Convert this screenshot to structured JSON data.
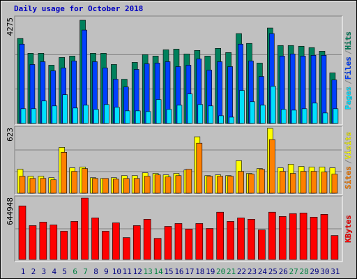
{
  "chart_data": [
    {
      "type": "bar",
      "title": "Daily usage for October 2018",
      "title_color": "#0000c0",
      "ylim": [
        0,
        4275
      ],
      "yticks": [
        4275
      ],
      "separator": "/",
      "series": [
        {
          "name": "Hits",
          "color": "#00805c",
          "values": [
            3519,
            2908,
            2908,
            2414,
            2733,
            2792,
            4275,
            2908,
            2908,
            2443,
            1832,
            2530,
            2850,
            2792,
            3053,
            3082,
            2879,
            3024,
            2792,
            3111,
            2937,
            3722,
            3315,
            2501,
            3955,
            3228,
            3228,
            3199,
            3141,
            2995,
            2094
          ]
        },
        {
          "name": "Files",
          "color": "#0040ff",
          "values": [
            3286,
            2443,
            2559,
            2181,
            2297,
            2588,
            3868,
            2559,
            2297,
            1832,
            1512,
            2239,
            2472,
            2501,
            2559,
            2356,
            2414,
            2675,
            2210,
            2559,
            2356,
            3286,
            2588,
            1948,
            3722,
            2792,
            2879,
            2792,
            2821,
            2821,
            1803
          ]
        },
        {
          "name": "Pages",
          "color": "#00e0ff",
          "values": [
            611,
            611,
            931,
            727,
            1192,
            640,
            756,
            582,
            785,
            669,
            523,
            523,
            494,
            989,
            582,
            756,
            1221,
            785,
            727,
            320,
            262,
            1367,
            901,
            756,
            1541,
            582,
            552,
            611,
            843,
            436,
            611
          ]
        }
      ]
    },
    {
      "type": "bar",
      "ylim": [
        0,
        623
      ],
      "yticks": [
        623
      ],
      "separator": "/",
      "series": [
        {
          "name": "Visits",
          "color": "#ffff00",
          "values": [
            230,
            163,
            163,
            149,
            440,
            244,
            251,
            149,
            142,
            149,
            169,
            169,
            196,
            190,
            176,
            190,
            223,
            542,
            169,
            176,
            169,
            312,
            190,
            237,
            623,
            244,
            278,
            257,
            251,
            251,
            244
          ]
        },
        {
          "name": "Sites",
          "color": "#ff8000",
          "values": [
            163,
            142,
            142,
            129,
            393,
            210,
            237,
            142,
            142,
            135,
            142,
            142,
            163,
            176,
            156,
            169,
            230,
            481,
            163,
            163,
            163,
            210,
            183,
            230,
            515,
            210,
            190,
            210,
            210,
            203,
            183
          ]
        }
      ]
    },
    {
      "type": "bar",
      "ylim": [
        0,
        644948
      ],
      "yticks": [
        644948
      ],
      "categories": [
        "1",
        "2",
        "3",
        "4",
        "5",
        "6",
        "7",
        "8",
        "9",
        "10",
        "11",
        "12",
        "13",
        "14",
        "15",
        "16",
        "17",
        "18",
        "19",
        "20",
        "21",
        "22",
        "23",
        "24",
        "25",
        "26",
        "27",
        "28",
        "29",
        "30",
        "31"
      ],
      "label_colors": [
        "#000080",
        "#000080",
        "#000080",
        "#000080",
        "#000080",
        "#008040",
        "#008040",
        "#000080",
        "#000080",
        "#000080",
        "#000080",
        "#000080",
        "#008040",
        "#008040",
        "#000080",
        "#000080",
        "#000080",
        "#000080",
        "#000080",
        "#008040",
        "#008040",
        "#000080",
        "#000080",
        "#000080",
        "#000080",
        "#000080",
        "#008040",
        "#008040",
        "#000080",
        "#000080",
        "#000080"
      ],
      "series": [
        {
          "name": "KBytes",
          "color": "#ff0000",
          "values": [
            563000,
            356000,
            393000,
            363000,
            297000,
            400000,
            644948,
            437000,
            297000,
            385000,
            230000,
            356000,
            423000,
            222000,
            348000,
            378000,
            319000,
            378000,
            326000,
            497000,
            400000,
            437000,
            423000,
            311000,
            497000,
            452000,
            482000,
            489000,
            445000,
            474000,
            252000
          ]
        }
      ]
    }
  ]
}
